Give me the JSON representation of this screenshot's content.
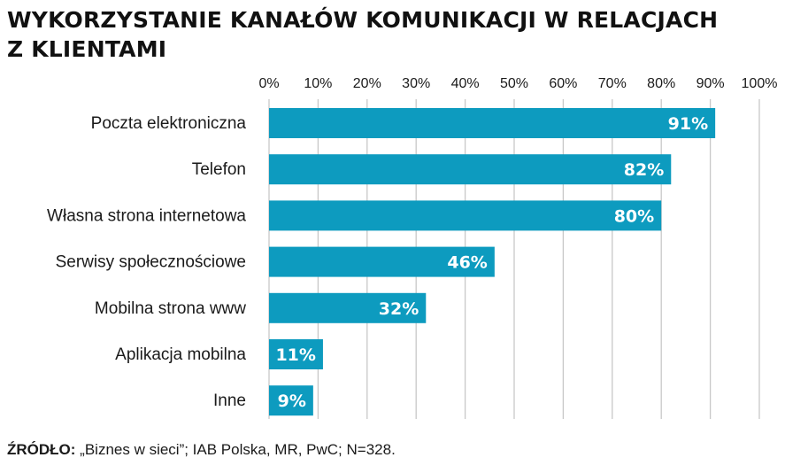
{
  "header": {
    "title_line1": "WYKORZYSTANIE KANAŁÓW KOMUNIKACJI W RELACJACH",
    "title_line2": "Z KLIENTAMI"
  },
  "footer": {
    "source_label": "ŹRÓDŁO:",
    "source_text": " „Biznes w sieci”; IAB Polska, MR, PwC; N=328."
  },
  "chart_data": {
    "type": "bar",
    "orientation": "horizontal",
    "categories": [
      "Poczta elektroniczna",
      "Telefon",
      "Własna strona internetowa",
      "Serwisy społecznościowe",
      "Mobilna strona www",
      "Aplikacja mobilna",
      "Inne"
    ],
    "values": [
      91,
      82,
      80,
      46,
      32,
      11,
      9
    ],
    "value_labels": [
      "91%",
      "82%",
      "80%",
      "46%",
      "32%",
      "11%",
      "9%"
    ],
    "ticks": [
      "0%",
      "10%",
      "20%",
      "30%",
      "40%",
      "50%",
      "60%",
      "70%",
      "80%",
      "90%",
      "100%"
    ],
    "xlim": [
      0,
      100
    ],
    "grid": true,
    "axis_position": "top",
    "bar_color": "#0d9bbf",
    "grid_color": "#c8c8c8"
  }
}
